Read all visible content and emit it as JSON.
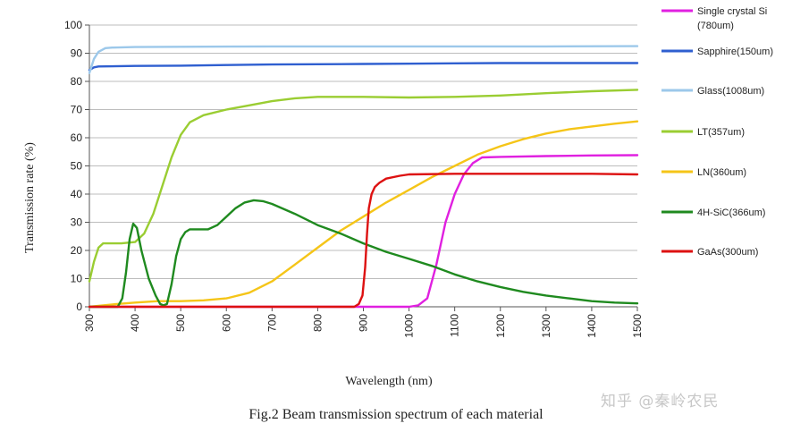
{
  "chart_data": {
    "type": "line",
    "title": "",
    "xlabel": "Wavelength (nm)",
    "ylabel": "Transmission rate (%)",
    "xlim": [
      300,
      1500
    ],
    "ylim": [
      0,
      100
    ],
    "x_ticks": [
      300,
      400,
      500,
      600,
      700,
      800,
      900,
      1000,
      1100,
      1200,
      1300,
      1400,
      1500
    ],
    "y_ticks": [
      0,
      10,
      20,
      30,
      40,
      50,
      60,
      70,
      80,
      90,
      100
    ],
    "grid": "horizontal",
    "legend_position": "right",
    "series": [
      {
        "name": "Single crystal Si",
        "legend_lines": [
          "Single crystal Si",
          "(780um)"
        ],
        "color": "#e020e0",
        "points": [
          [
            300,
            0
          ],
          [
            1000,
            0
          ],
          [
            1020,
            0.5
          ],
          [
            1040,
            3
          ],
          [
            1060,
            15
          ],
          [
            1080,
            30
          ],
          [
            1100,
            40
          ],
          [
            1120,
            47
          ],
          [
            1140,
            51
          ],
          [
            1160,
            53
          ],
          [
            1200,
            53.2
          ],
          [
            1300,
            53.5
          ],
          [
            1400,
            53.7
          ],
          [
            1500,
            53.8
          ]
        ]
      },
      {
        "name": "Sapphire(150um)",
        "legend_lines": [
          "Sapphire(150um)"
        ],
        "color": "#2f5fd0",
        "points": [
          [
            300,
            84
          ],
          [
            310,
            85
          ],
          [
            320,
            85.3
          ],
          [
            400,
            85.5
          ],
          [
            500,
            85.6
          ],
          [
            600,
            85.8
          ],
          [
            700,
            86
          ],
          [
            800,
            86.1
          ],
          [
            900,
            86.2
          ],
          [
            1000,
            86.3
          ],
          [
            1100,
            86.4
          ],
          [
            1200,
            86.5
          ],
          [
            1300,
            86.5
          ],
          [
            1400,
            86.5
          ],
          [
            1500,
            86.5
          ]
        ]
      },
      {
        "name": "Glass(1008um)",
        "legend_lines": [
          "Glass(1008um)"
        ],
        "color": "#9cc8ea",
        "points": [
          [
            300,
            83
          ],
          [
            310,
            88
          ],
          [
            320,
            90.5
          ],
          [
            335,
            91.8
          ],
          [
            350,
            92
          ],
          [
            400,
            92.2
          ],
          [
            500,
            92.3
          ],
          [
            700,
            92.4
          ],
          [
            900,
            92.4
          ],
          [
            1100,
            92.4
          ],
          [
            1300,
            92.4
          ],
          [
            1500,
            92.5
          ]
        ]
      },
      {
        "name": "LT(357um)",
        "legend_lines": [
          "LT(357um)"
        ],
        "color": "#9acd32",
        "points": [
          [
            300,
            9
          ],
          [
            310,
            16
          ],
          [
            320,
            21
          ],
          [
            330,
            22.5
          ],
          [
            370,
            22.5
          ],
          [
            400,
            23
          ],
          [
            420,
            26
          ],
          [
            440,
            33
          ],
          [
            460,
            43
          ],
          [
            480,
            53
          ],
          [
            500,
            61
          ],
          [
            520,
            65.5
          ],
          [
            550,
            68
          ],
          [
            600,
            70
          ],
          [
            650,
            71.5
          ],
          [
            700,
            73
          ],
          [
            750,
            74
          ],
          [
            800,
            74.5
          ],
          [
            900,
            74.5
          ],
          [
            1000,
            74.3
          ],
          [
            1100,
            74.5
          ],
          [
            1200,
            75
          ],
          [
            1300,
            75.8
          ],
          [
            1400,
            76.5
          ],
          [
            1500,
            77
          ]
        ]
      },
      {
        "name": "LN(360um)",
        "legend_lines": [
          "LN(360um)"
        ],
        "color": "#f5c518",
        "points": [
          [
            300,
            0
          ],
          [
            330,
            0.5
          ],
          [
            360,
            1
          ],
          [
            400,
            1.5
          ],
          [
            450,
            2
          ],
          [
            500,
            2
          ],
          [
            550,
            2.3
          ],
          [
            600,
            3
          ],
          [
            650,
            5
          ],
          [
            700,
            9
          ],
          [
            750,
            15
          ],
          [
            800,
            21
          ],
          [
            850,
            27
          ],
          [
            900,
            32
          ],
          [
            950,
            37
          ],
          [
            1000,
            41.5
          ],
          [
            1050,
            46
          ],
          [
            1100,
            50
          ],
          [
            1150,
            54
          ],
          [
            1200,
            57
          ],
          [
            1250,
            59.5
          ],
          [
            1300,
            61.5
          ],
          [
            1350,
            63
          ],
          [
            1400,
            64
          ],
          [
            1450,
            65
          ],
          [
            1500,
            65.8
          ]
        ]
      },
      {
        "name": "4H-SiC(366um)",
        "legend_lines": [
          "4H-SiC(366um)"
        ],
        "color": "#1f8a1f",
        "points": [
          [
            300,
            0
          ],
          [
            362,
            0
          ],
          [
            372,
            3
          ],
          [
            380,
            12
          ],
          [
            388,
            24
          ],
          [
            396,
            29.5
          ],
          [
            404,
            28
          ],
          [
            414,
            20
          ],
          [
            430,
            10
          ],
          [
            445,
            4
          ],
          [
            455,
            1
          ],
          [
            462,
            0.5
          ],
          [
            470,
            1
          ],
          [
            480,
            8
          ],
          [
            490,
            18
          ],
          [
            500,
            24
          ],
          [
            510,
            26.5
          ],
          [
            520,
            27.5
          ],
          [
            540,
            27.5
          ],
          [
            560,
            27.5
          ],
          [
            580,
            29
          ],
          [
            600,
            32
          ],
          [
            620,
            35
          ],
          [
            640,
            37
          ],
          [
            660,
            37.8
          ],
          [
            680,
            37.5
          ],
          [
            700,
            36.5
          ],
          [
            750,
            33
          ],
          [
            800,
            29
          ],
          [
            850,
            26
          ],
          [
            900,
            22.5
          ],
          [
            950,
            19.5
          ],
          [
            1000,
            17
          ],
          [
            1050,
            14.5
          ],
          [
            1100,
            11.5
          ],
          [
            1150,
            9
          ],
          [
            1200,
            7
          ],
          [
            1250,
            5.3
          ],
          [
            1300,
            4
          ],
          [
            1350,
            3
          ],
          [
            1400,
            2
          ],
          [
            1450,
            1.5
          ],
          [
            1500,
            1.2
          ]
        ]
      },
      {
        "name": "GaAs(300um)",
        "legend_lines": [
          "GaAs(300um)"
        ],
        "color": "#dd1111",
        "points": [
          [
            300,
            0
          ],
          [
            880,
            0
          ],
          [
            890,
            1
          ],
          [
            898,
            4
          ],
          [
            904,
            14
          ],
          [
            908,
            26
          ],
          [
            912,
            35
          ],
          [
            918,
            40
          ],
          [
            925,
            42.5
          ],
          [
            935,
            44
          ],
          [
            950,
            45.5
          ],
          [
            980,
            46.5
          ],
          [
            1000,
            47
          ],
          [
            1100,
            47.2
          ],
          [
            1200,
            47.2
          ],
          [
            1300,
            47.2
          ],
          [
            1400,
            47.2
          ],
          [
            1500,
            47
          ]
        ]
      }
    ]
  },
  "caption": "Fig.2 Beam transmission spectrum of each material",
  "watermark": "知乎 @秦岭农民"
}
